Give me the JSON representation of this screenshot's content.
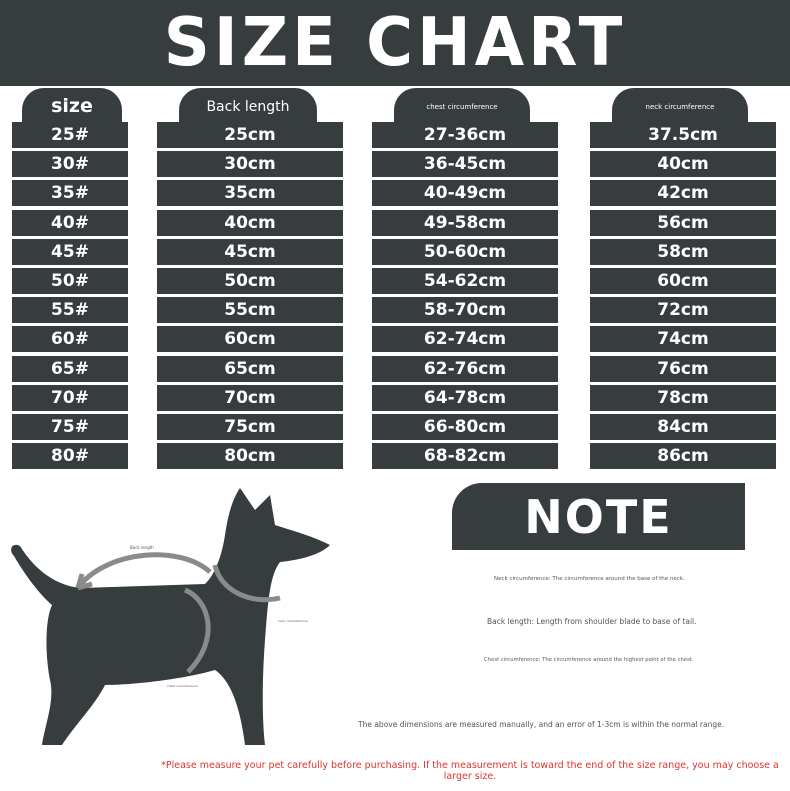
{
  "title": "SIZE CHART",
  "columns": [
    {
      "header": "size",
      "values": [
        "25#",
        "30#",
        "35#",
        "40#",
        "45#",
        "50#",
        "55#",
        "60#",
        "65#",
        "70#",
        "75#",
        "80#"
      ]
    },
    {
      "header": "Back length",
      "values": [
        "25cm",
        "30cm",
        "35cm",
        "40cm",
        "45cm",
        "50cm",
        "55cm",
        "60cm",
        "65cm",
        "70cm",
        "75cm",
        "80cm"
      ]
    },
    {
      "header": "chest circumference",
      "values": [
        "27-36cm",
        "36-45cm",
        "40-49cm",
        "49-58cm",
        "50-60cm",
        "54-62cm",
        "58-70cm",
        "62-74cm",
        "62-76cm",
        "64-78cm",
        "66-80cm",
        "68-82cm"
      ]
    },
    {
      "header": "neck circumference",
      "values": [
        "37.5cm",
        "40cm",
        "42cm",
        "56cm",
        "58cm",
        "60cm",
        "72cm",
        "74cm",
        "76cm",
        "78cm",
        "84cm",
        "86cm"
      ]
    }
  ],
  "diagram": {
    "back_label": "Back length",
    "neck_label": "neck circumference",
    "chest_label": "chest circumference"
  },
  "note": {
    "title": "NOTE",
    "neck": "Neck circumference: The circumference around the base of the neck.",
    "back": "Back length: Length from shoulder blade to base of tail.",
    "chest": "Chest circumference: The circumference around the highest point of the chest.",
    "error": "The above dimensions are measured manually, and an error of 1-3cm is within the normal range.",
    "warning": "*Please measure your pet carefully before purchasing. If the measurement is toward the end of the size range, you may choose a larger size."
  },
  "colors": {
    "dark": "#373c3e",
    "arrow": "#8a8a8a",
    "warning": "#e0332f"
  }
}
